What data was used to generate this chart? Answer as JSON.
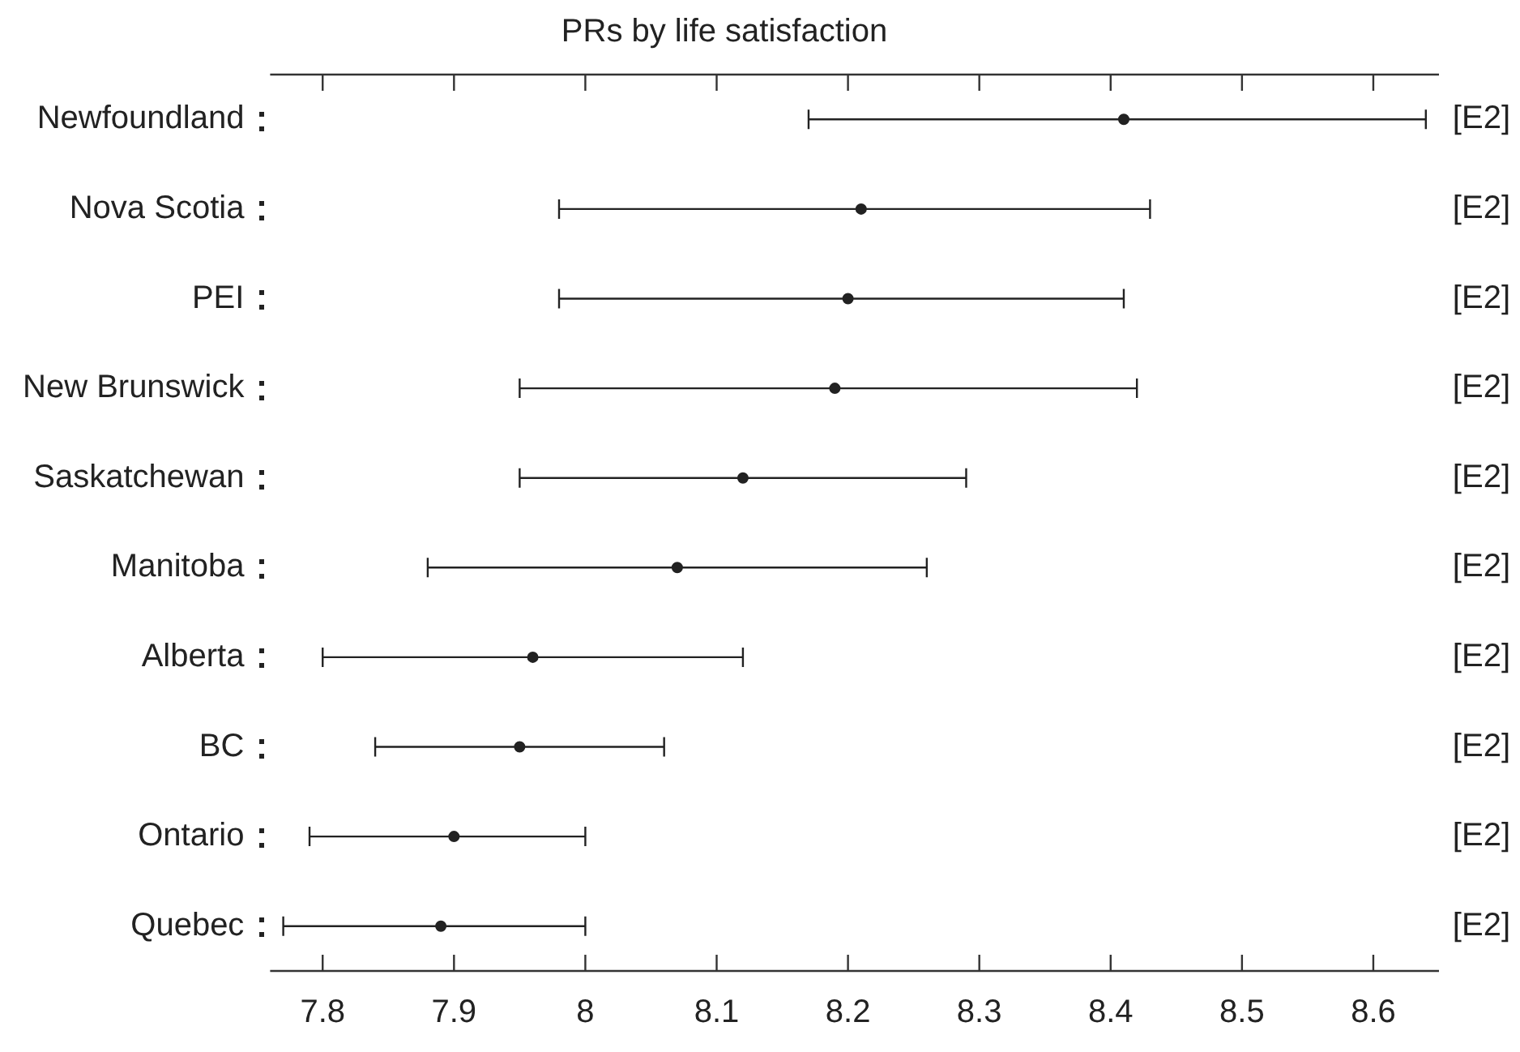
{
  "chart_data": {
    "type": "scatter",
    "orientation": "horizontal",
    "title": "PRs by life satisfaction",
    "categories": [
      "Newfoundland",
      "Nova Scotia",
      "PEI",
      "New Brunswick",
      "Saskatchewan",
      "Manitoba",
      "Alberta",
      "BC",
      "Ontario",
      "Quebec"
    ],
    "values": [
      8.41,
      8.21,
      8.2,
      8.19,
      8.12,
      8.07,
      7.96,
      7.95,
      7.9,
      7.89
    ],
    "errors": [
      [
        8.17,
        8.64
      ],
      [
        7.98,
        8.43
      ],
      [
        7.98,
        8.41
      ],
      [
        7.95,
        8.42
      ],
      [
        7.95,
        8.29
      ],
      [
        7.88,
        8.26
      ],
      [
        7.8,
        8.12
      ],
      [
        7.84,
        8.06
      ],
      [
        7.79,
        8.0
      ],
      [
        7.77,
        8.0
      ]
    ],
    "value_labels": [
      "[E2]",
      "[E2]",
      "[E2]",
      "[E2]",
      "[E2]",
      "[E2]",
      "[E2]",
      "[E2]",
      "[E2]",
      "[E2]"
    ],
    "color": "#222222",
    "marker": "circle",
    "xlim": [
      7.76,
      8.65
    ],
    "xticks": [
      7.8,
      7.9,
      8,
      8.1,
      8.2,
      8.3,
      8.4,
      8.5,
      8.6
    ]
  }
}
